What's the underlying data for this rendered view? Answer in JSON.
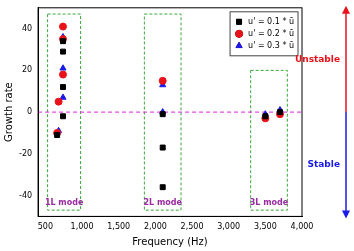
{
  "chart_data": {
    "type": "scatter",
    "x_label": "Frequency (Hz)",
    "y_label": "Growth rate",
    "xlim": [
      400,
      4000
    ],
    "xticks": [
      500,
      1000,
      1500,
      2000,
      2500,
      3000,
      3500,
      4000
    ],
    "ylim": [
      -50,
      50
    ],
    "yticks": [
      -40,
      -20,
      0,
      20,
      40
    ],
    "grid": false,
    "legend": "upper right",
    "series": [
      {
        "name": "u' = 0.1 * ū",
        "color": "#000000",
        "marker": "square",
        "x": [
          660,
          740,
          740,
          740,
          740,
          2100,
          2100,
          2100,
          3500,
          3700
        ],
        "values": [
          -11,
          -2,
          12,
          29,
          34,
          -1,
          -17,
          -36,
          -2,
          0
        ]
      },
      {
        "name": "u' = 0.2 * ū",
        "color": "#e8131a",
        "marker": "circle",
        "x": [
          660,
          680,
          740,
          740,
          740,
          2100,
          3500,
          3700
        ],
        "values": [
          -10,
          5,
          18,
          35,
          41,
          15,
          -3,
          -1
        ]
      },
      {
        "name": "u' = 0.3 * ū",
        "color": "#1a1ae8",
        "marker": "triangle",
        "x": [
          680,
          740,
          740,
          740,
          2100,
          2100,
          3500,
          3700
        ],
        "values": [
          -9,
          7,
          21,
          36,
          0,
          13,
          -1,
          1
        ]
      }
    ],
    "reference_line": {
      "y": 0,
      "color": "#e020e0",
      "line_style": "dashed"
    },
    "annotations": [
      {
        "text": "1L mode",
        "x": [
          530,
          980
        ],
        "y": [
          -47,
          47
        ],
        "color": "#3aa63a"
      },
      {
        "text": "2L mode",
        "x": [
          1850,
          2350
        ],
        "y": [
          -47,
          47
        ],
        "color": "#3aa63a"
      },
      {
        "text": "3L mode",
        "x": [
          3300,
          3800
        ],
        "y": [
          -47,
          20
        ],
        "color": "#3aa63a"
      }
    ],
    "side_labels": [
      {
        "text": "Unstable",
        "color": "#e8131a"
      },
      {
        "text": "Stable",
        "color": "#1a1ae8"
      }
    ]
  }
}
